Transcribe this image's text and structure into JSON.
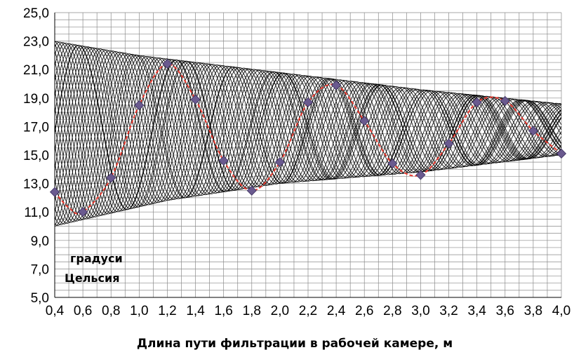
{
  "chart_data": {
    "type": "line",
    "title": "",
    "xlabel": "Длина пути фильтрации в рабочей камере, м",
    "unit_label_line1": "градуси",
    "unit_label_line2": "Цельсия",
    "x_ticks": [
      "0,4",
      "0,6",
      "0,8",
      "1,0",
      "1,2",
      "1,4",
      "1,6",
      "1,8",
      "2,0",
      "2,2",
      "2,4",
      "2,6",
      "2,8",
      "3,0",
      "3,2",
      "3,4",
      "3,6",
      "3,8",
      "4,0"
    ],
    "y_ticks": [
      "5,0",
      "7,0",
      "9,0",
      "11,0",
      "13,0",
      "15,0",
      "17,0",
      "19,0",
      "21,0",
      "23,0",
      "25,0"
    ],
    "xlim": [
      0.4,
      4.0
    ],
    "ylim": [
      5.0,
      25.0
    ],
    "grid": "on",
    "background_curves": {
      "count": 32,
      "color": "#000000",
      "lower_envelope": [
        [
          0.4,
          10.0
        ],
        [
          1.2,
          11.8
        ],
        [
          2.0,
          13.0
        ],
        [
          3.0,
          13.8
        ],
        [
          4.0,
          15.0
        ]
      ],
      "upper_envelope": [
        [
          0.4,
          23.0
        ],
        [
          1.0,
          22.0
        ],
        [
          2.0,
          20.8
        ],
        [
          3.0,
          19.6
        ],
        [
          4.0,
          18.6
        ]
      ]
    },
    "series": [
      {
        "type": "line",
        "style": "dashed",
        "color": "#e8392f",
        "x": [
          0.4,
          0.5,
          0.6,
          0.8,
          1.0,
          1.2,
          1.4,
          1.6,
          1.8,
          2.0,
          2.2,
          2.4,
          2.6,
          2.8,
          3.0,
          3.2,
          3.4,
          3.6,
          3.8,
          4.0
        ],
        "y": [
          12.4,
          11.3,
          11.0,
          13.4,
          18.5,
          21.4,
          18.9,
          14.6,
          12.5,
          14.5,
          18.7,
          19.9,
          17.4,
          14.4,
          13.6,
          15.8,
          18.7,
          18.8,
          16.7,
          15.1
        ]
      },
      {
        "type": "scatter",
        "marker": "diamond",
        "color": "#6a5a8f",
        "x": [
          0.4,
          0.6,
          0.8,
          1.0,
          1.2,
          1.4,
          1.6,
          1.8,
          2.0,
          2.2,
          2.4,
          2.6,
          2.8,
          3.0,
          3.2,
          3.4,
          3.6,
          3.8,
          4.0
        ],
        "y": [
          12.4,
          11.0,
          13.4,
          18.5,
          21.4,
          18.9,
          14.6,
          12.5,
          14.5,
          18.7,
          19.9,
          17.4,
          14.4,
          13.6,
          15.8,
          18.7,
          18.8,
          16.7,
          15.1
        ]
      }
    ]
  }
}
